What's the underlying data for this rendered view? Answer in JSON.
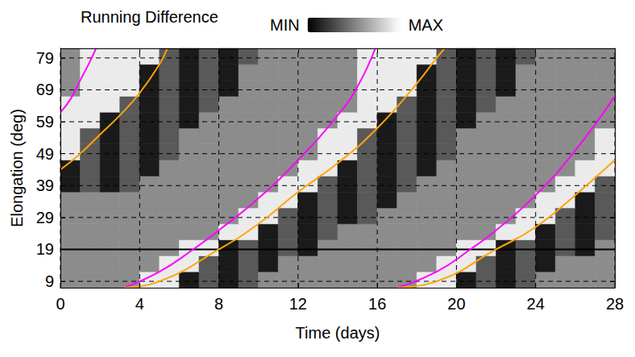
{
  "chart_data": {
    "type": "heatmap",
    "title": "Running Difference",
    "xlabel": "Time (days)",
    "ylabel": "Elongation (deg)",
    "xlim": [
      0,
      28
    ],
    "xticks": [
      0,
      4,
      8,
      12,
      16,
      20,
      24,
      28
    ],
    "ylim": [
      7,
      82
    ],
    "yticks": [
      9,
      19,
      29,
      39,
      49,
      59,
      69,
      79
    ],
    "grid": true,
    "color": [
      "#000000",
      "#ffffff"
    ],
    "color_range": [
      0,
      100
    ],
    "color_ticks": [
      {
        "value": 0,
        "label": "MIN"
      },
      {
        "value": 100,
        "label": "MAX"
      }
    ],
    "x_edges": [
      0,
      1,
      2,
      3,
      4,
      5,
      6,
      7,
      8,
      9,
      10,
      11,
      12,
      13,
      14,
      15,
      16,
      17,
      18,
      19,
      20,
      21,
      22,
      23,
      24,
      25,
      26,
      27,
      28
    ],
    "y_edges": [
      7,
      12,
      17,
      22,
      27,
      32,
      37,
      42,
      47,
      52,
      57,
      62,
      67,
      72,
      77,
      82
    ],
    "cells": [
      [
        55,
        55,
        55,
        55,
        92,
        92,
        10,
        35,
        10,
        35,
        55,
        55,
        55,
        55,
        55,
        55,
        55,
        55,
        92,
        92,
        10,
        35,
        10,
        35,
        55,
        55,
        55,
        55
      ],
      [
        55,
        55,
        55,
        55,
        55,
        92,
        92,
        35,
        10,
        35,
        10,
        55,
        55,
        55,
        55,
        55,
        55,
        55,
        55,
        92,
        92,
        35,
        10,
        35,
        10,
        55,
        55,
        55
      ],
      [
        55,
        55,
        55,
        55,
        55,
        55,
        92,
        92,
        10,
        35,
        10,
        35,
        10,
        55,
        55,
        55,
        55,
        55,
        55,
        55,
        92,
        92,
        10,
        35,
        10,
        35,
        10,
        55
      ],
      [
        55,
        55,
        55,
        55,
        55,
        55,
        55,
        55,
        92,
        92,
        10,
        35,
        10,
        35,
        55,
        55,
        55,
        55,
        55,
        55,
        55,
        55,
        92,
        92,
        10,
        35,
        10,
        35
      ],
      [
        55,
        55,
        55,
        55,
        55,
        55,
        55,
        55,
        55,
        92,
        92,
        35,
        10,
        35,
        10,
        35,
        55,
        55,
        55,
        55,
        55,
        55,
        55,
        92,
        92,
        35,
        10,
        35
      ],
      [
        55,
        55,
        55,
        55,
        55,
        55,
        55,
        55,
        55,
        55,
        92,
        92,
        10,
        35,
        10,
        35,
        10,
        55,
        55,
        55,
        55,
        55,
        55,
        55,
        92,
        92,
        10,
        35
      ],
      [
        10,
        35,
        10,
        35,
        55,
        55,
        55,
        55,
        55,
        55,
        55,
        92,
        92,
        35,
        10,
        35,
        10,
        35,
        55,
        55,
        55,
        55,
        55,
        55,
        55,
        92,
        92,
        35
      ],
      [
        10,
        35,
        10,
        35,
        10,
        55,
        55,
        55,
        55,
        55,
        55,
        55,
        92,
        92,
        10,
        35,
        10,
        35,
        10,
        55,
        55,
        55,
        55,
        55,
        55,
        55,
        92,
        92
      ],
      [
        92,
        35,
        10,
        35,
        10,
        35,
        55,
        55,
        55,
        55,
        55,
        55,
        55,
        92,
        92,
        35,
        10,
        35,
        10,
        35,
        55,
        55,
        55,
        55,
        55,
        55,
        55,
        92
      ],
      [
        92,
        35,
        10,
        35,
        10,
        35,
        55,
        55,
        55,
        55,
        55,
        55,
        55,
        92,
        92,
        35,
        10,
        35,
        10,
        35,
        55,
        55,
        55,
        55,
        55,
        55,
        55,
        92
      ],
      [
        92,
        92,
        10,
        35,
        10,
        35,
        10,
        55,
        55,
        55,
        55,
        55,
        55,
        55,
        92,
        92,
        10,
        35,
        10,
        35,
        10,
        55,
        55,
        55,
        55,
        55,
        55,
        55
      ],
      [
        92,
        92,
        92,
        35,
        10,
        35,
        10,
        35,
        55,
        55,
        55,
        55,
        55,
        55,
        55,
        92,
        92,
        35,
        10,
        35,
        10,
        35,
        55,
        55,
        55,
        55,
        55,
        55
      ],
      [
        55,
        92,
        92,
        92,
        10,
        35,
        10,
        35,
        10,
        55,
        55,
        55,
        55,
        55,
        55,
        92,
        92,
        92,
        10,
        35,
        10,
        35,
        10,
        55,
        55,
        55,
        55,
        55
      ],
      [
        55,
        92,
        92,
        92,
        10,
        35,
        10,
        35,
        10,
        55,
        55,
        55,
        55,
        55,
        55,
        92,
        92,
        92,
        10,
        35,
        10,
        35,
        10,
        55,
        55,
        55,
        55,
        55
      ],
      [
        55,
        92,
        92,
        92,
        92,
        35,
        10,
        35,
        10,
        35,
        55,
        55,
        55,
        55,
        55,
        92,
        92,
        92,
        92,
        35,
        10,
        35,
        10,
        35,
        55,
        55,
        55,
        55
      ]
    ],
    "series": [
      {
        "type": "line",
        "color": "#000000",
        "x": [
          0,
          28
        ],
        "values": [
          19,
          19
        ]
      },
      {
        "type": "line",
        "color": "#ff00ff",
        "x": [
          0,
          0.5,
          1,
          1.5,
          1.8
        ],
        "values": [
          62,
          66,
          72,
          78,
          82
        ]
      },
      {
        "type": "line",
        "color": "#ffa500",
        "x": [
          0,
          1,
          2,
          3,
          4,
          5,
          5.4
        ],
        "values": [
          44,
          49,
          55,
          61,
          68,
          77,
          82
        ]
      },
      {
        "type": "line",
        "color": "#ff00ff",
        "x": [
          3.2,
          5,
          6.7,
          8,
          10,
          12,
          14,
          15,
          15.9
        ],
        "values": [
          7,
          12,
          19,
          25,
          35,
          47,
          61,
          70,
          82
        ]
      },
      {
        "type": "line",
        "color": "#ffa500",
        "x": [
          3.2,
          5,
          8,
          10,
          12,
          14,
          16,
          18,
          19,
          19.4
        ],
        "values": [
          7,
          9,
          19,
          27,
          37,
          46,
          57,
          71,
          79,
          82
        ]
      },
      {
        "type": "line",
        "color": "#ff00ff",
        "x": [
          17,
          19,
          20.7,
          22,
          24,
          26,
          28
        ],
        "values": [
          7,
          12,
          19,
          25,
          36,
          50,
          67
        ]
      },
      {
        "type": "line",
        "color": "#ffa500",
        "x": [
          17,
          19,
          22,
          24,
          26,
          28
        ],
        "values": [
          7,
          9,
          19,
          26,
          36,
          47
        ]
      }
    ]
  }
}
